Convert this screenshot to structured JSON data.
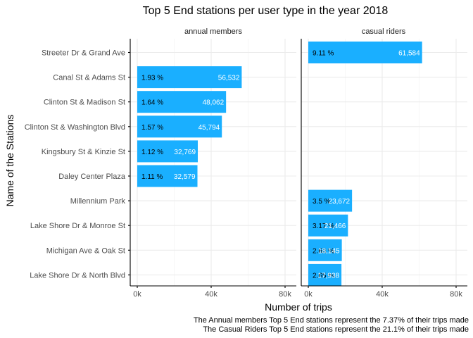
{
  "chart_data": {
    "type": "bar",
    "orientation": "horizontal",
    "title": "Top 5 End stations per user type in the year 2018",
    "xlabel": "Number of trips",
    "ylabel": "Name of the Stations",
    "xlim": [
      0,
      85000
    ],
    "x_ticks": [
      {
        "value": 0,
        "label": "0k"
      },
      {
        "value": 40000,
        "label": "40k"
      },
      {
        "value": 80000,
        "label": "80k"
      }
    ],
    "grid": true,
    "bar_color": "#1aafff",
    "categories": [
      "Streeter Dr & Grand Ave",
      "Canal St & Adams St",
      "Clinton St & Madison St",
      "Clinton St & Washington Blvd",
      "Kingsbury St & Kinzie St",
      "Daley Center Plaza",
      "Millennium Park",
      "Lake Shore Dr & Monroe St",
      "Michigan Ave & Oak St",
      "Lake Shore Dr & North Blvd"
    ],
    "facets": [
      {
        "name": "annual members",
        "bars": [
          {
            "category": "Canal St & Adams St",
            "value": 56532,
            "value_label": "56,532",
            "pct_label": "1.93 %"
          },
          {
            "category": "Clinton St & Madison St",
            "value": 48062,
            "value_label": "48,062",
            "pct_label": "1.64 %"
          },
          {
            "category": "Clinton St & Washington Blvd",
            "value": 45794,
            "value_label": "45,794",
            "pct_label": "1.57 %"
          },
          {
            "category": "Kingsbury St & Kinzie St",
            "value": 32769,
            "value_label": "32,769",
            "pct_label": "1.12 %"
          },
          {
            "category": "Daley Center Plaza",
            "value": 32579,
            "value_label": "32,579",
            "pct_label": "1.11 %"
          }
        ]
      },
      {
        "name": "casual riders",
        "bars": [
          {
            "category": "Streeter Dr & Grand Ave",
            "value": 61584,
            "value_label": "61,584",
            "pct_label": "9.11 %"
          },
          {
            "category": "Millennium Park",
            "value": 23672,
            "value_label": "23,672",
            "pct_label": "3.5 %"
          },
          {
            "category": "Lake Shore Dr & Monroe St",
            "value": 21466,
            "value_label": "21,466",
            "pct_label": "3.17 %"
          },
          {
            "category": "Michigan Ave & Oak St",
            "value": 18145,
            "value_label": "18,145",
            "pct_label": "2.68 %"
          },
          {
            "category": "Lake Shore Dr & North Blvd",
            "value": 17938,
            "value_label": "17,938",
            "pct_label": "2.65 %"
          }
        ]
      }
    ],
    "captions": [
      "The Annual members Top 5 End stations represent the 7.37% of their trips made",
      "The Casual Riders Top 5 End stations represent the 21.1% of their trips made"
    ]
  }
}
